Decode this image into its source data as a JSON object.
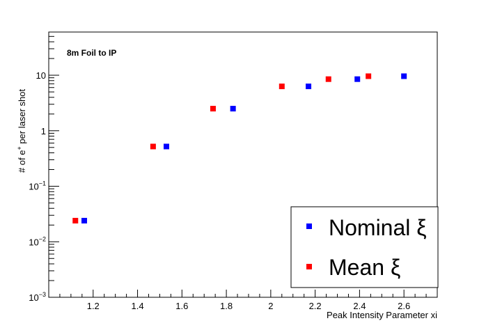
{
  "chart_data": {
    "type": "scatter",
    "title": "",
    "xlabel": "Peak Intensity Parameter xi",
    "ylabel": "# of e+ per laser shot",
    "ylabel_parts": {
      "pre": "# of e",
      "sup": "+",
      "post": " per laser shot"
    },
    "yscale": "log",
    "xlim": [
      1.0,
      2.75
    ],
    "ylim": [
      0.001,
      60
    ],
    "x_ticks": [
      1.2,
      1.4,
      1.6,
      1.8,
      2.0,
      2.2,
      2.4,
      2.6
    ],
    "x_tick_labels": [
      "1.2",
      "1.4",
      "1.6",
      "1.8",
      "2",
      "2.2",
      "2.4",
      "2.6"
    ],
    "y_ticks": [
      {
        "value": 0.001,
        "base": "10",
        "exp": "−3"
      },
      {
        "value": 0.01,
        "base": "10",
        "exp": "−2"
      },
      {
        "value": 0.1,
        "base": "10",
        "exp": "−1"
      },
      {
        "value": 1,
        "base": "1",
        "exp": ""
      },
      {
        "value": 10,
        "base": "10",
        "exp": ""
      }
    ],
    "annotation": "8m Foil to IP",
    "legend_position": "bottom-right",
    "series": [
      {
        "name": "Nominal ξ",
        "color": "#0000ff",
        "marker": "square",
        "x": [
          1.16,
          1.53,
          1.83,
          2.17,
          2.39,
          2.6
        ],
        "y": [
          0.024,
          0.52,
          2.5,
          6.3,
          8.5,
          9.6
        ]
      },
      {
        "name": "Mean ξ",
        "color": "#ff0000",
        "marker": "square",
        "x": [
          1.12,
          1.47,
          1.74,
          2.05,
          2.26,
          2.44
        ],
        "y": [
          0.024,
          0.52,
          2.5,
          6.3,
          8.5,
          9.6
        ]
      }
    ]
  }
}
